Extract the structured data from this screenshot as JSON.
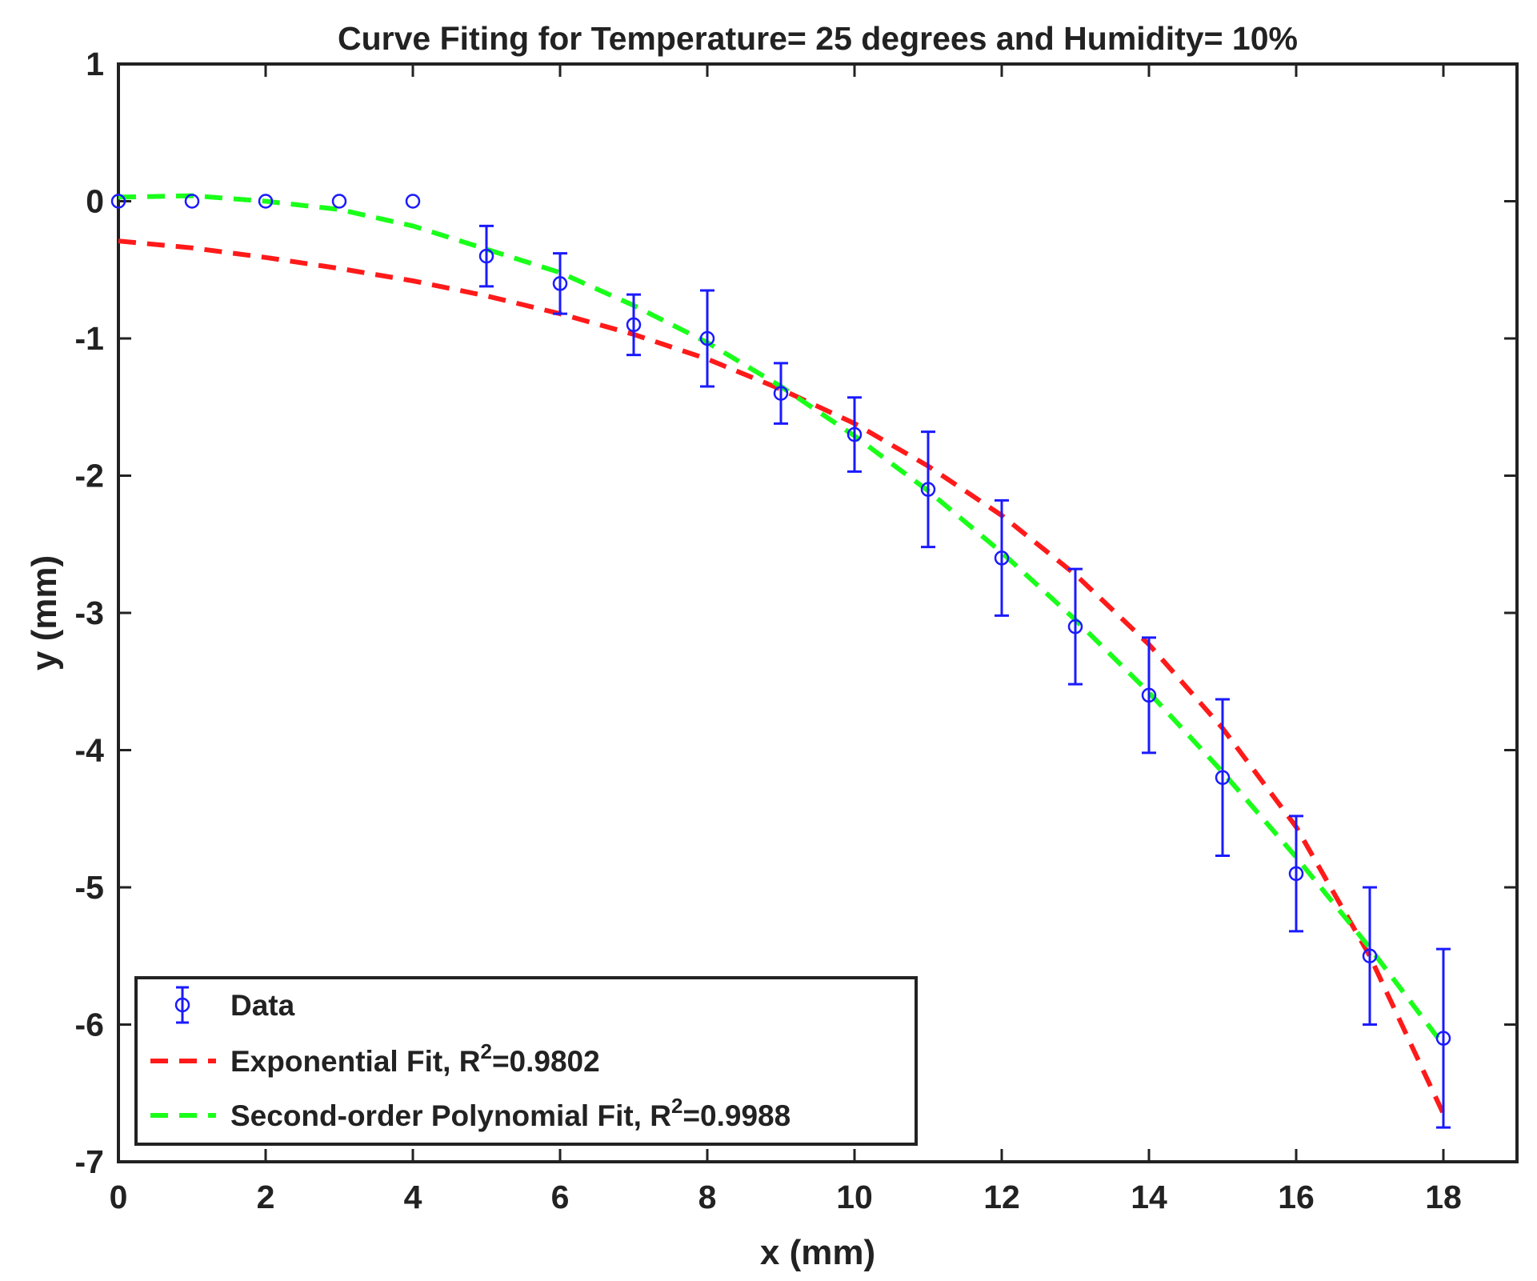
{
  "chart_data": {
    "type": "scatter",
    "title": "Curve Fiting for Temperature= 25 degrees and Humidity= 10%",
    "xlabel": "x (mm)",
    "ylabel": "y (mm)",
    "xlim": [
      0,
      19
    ],
    "ylim": [
      -7,
      1
    ],
    "xticks": [
      "0",
      "2",
      "4",
      "6",
      "8",
      "10",
      "12",
      "14",
      "16",
      "18"
    ],
    "yticks": [
      "1",
      "0",
      "-1",
      "-2",
      "-3",
      "-4",
      "-5",
      "-6",
      "-7"
    ],
    "grid": false,
    "legend_position": "bottom-left",
    "colors": {
      "data": "#1a1aff",
      "exponential": "#ff1a1a",
      "polynomial": "#1aff1a",
      "axis": "#222222"
    },
    "series": [
      {
        "name": "Data",
        "style": "errorbar-circle",
        "x": [
          0,
          1,
          2,
          3,
          4,
          5,
          6,
          7,
          8,
          9,
          10,
          11,
          12,
          13,
          14,
          15,
          16,
          17,
          18
        ],
        "y": [
          0,
          0,
          0,
          0,
          0,
          -0.4,
          -0.6,
          -0.9,
          -1.0,
          -1.4,
          -1.7,
          -2.1,
          -2.6,
          -3.1,
          -3.6,
          -4.2,
          -4.9,
          -5.5,
          -6.1
        ],
        "err": [
          0,
          0,
          0,
          0,
          0,
          0.22,
          0.22,
          0.22,
          0.35,
          0.22,
          0.27,
          0.42,
          0.42,
          0.42,
          0.42,
          0.57,
          0.42,
          0.5,
          0.65
        ]
      },
      {
        "name": "Exponential Fit, R",
        "name_sup": "2",
        "name_suffix": "=0.9802",
        "style": "dashed",
        "x": [
          0,
          1,
          2,
          3,
          4,
          5,
          6,
          7,
          8,
          9,
          10,
          11,
          12,
          13,
          14,
          15,
          16,
          17,
          18
        ],
        "y": [
          -0.29,
          -0.34,
          -0.41,
          -0.49,
          -0.58,
          -0.69,
          -0.82,
          -0.97,
          -1.15,
          -1.37,
          -1.62,
          -1.93,
          -2.29,
          -2.72,
          -3.23,
          -3.84,
          -4.56,
          -5.5,
          -6.65
        ]
      },
      {
        "name": "Second-order Polynomial Fit, R",
        "name_sup": "2",
        "name_suffix": "=0.9988",
        "style": "dashed",
        "x": [
          0,
          1,
          2,
          3,
          4,
          5,
          6,
          7,
          8,
          9,
          10,
          11,
          12,
          13,
          14,
          15,
          16,
          17,
          18
        ],
        "y": [
          0.03,
          0.04,
          0.0,
          -0.06,
          -0.18,
          -0.35,
          -0.52,
          -0.76,
          -1.03,
          -1.35,
          -1.71,
          -2.11,
          -2.56,
          -3.05,
          -3.58,
          -4.16,
          -4.78,
          -5.44,
          -6.15
        ]
      }
    ]
  }
}
